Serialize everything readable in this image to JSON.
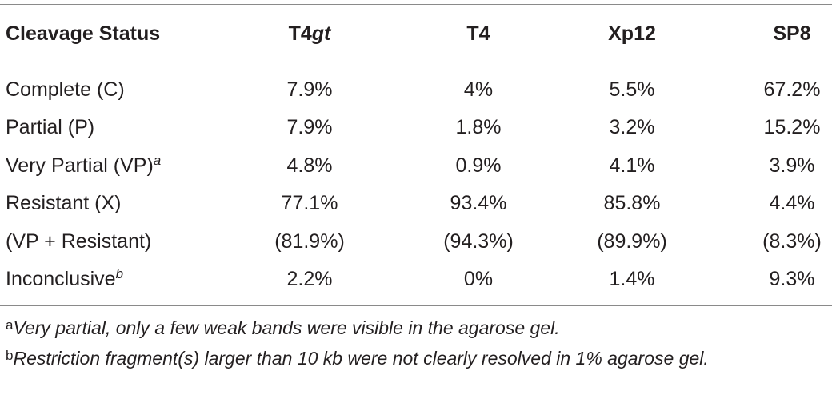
{
  "table": {
    "header": [
      {
        "text": "Cleavage Status"
      },
      {
        "text": "T4",
        "italic": "gt"
      },
      {
        "text": "T4"
      },
      {
        "text": "Xp12"
      },
      {
        "text": "SP8"
      }
    ],
    "rows": [
      {
        "label": {
          "text": "Complete (C)"
        },
        "cells": [
          "7.9%",
          "4%",
          "5.5%",
          "67.2%"
        ]
      },
      {
        "label": {
          "text": "Partial (P)"
        },
        "cells": [
          "7.9%",
          "1.8%",
          "3.2%",
          "15.2%"
        ]
      },
      {
        "label": {
          "text": "Very Partial (VP)",
          "sup": "a"
        },
        "cells": [
          "4.8%",
          "0.9%",
          "4.1%",
          "3.9%"
        ]
      },
      {
        "label": {
          "text": "Resistant (X)"
        },
        "cells": [
          "77.1%",
          "93.4%",
          "85.8%",
          "4.4%"
        ]
      },
      {
        "label": {
          "text": "(VP + Resistant)"
        },
        "cells": [
          "(81.9%)",
          "(94.3%)",
          "(89.9%)",
          "(8.3%)"
        ]
      },
      {
        "label": {
          "text": "Inconclusive",
          "sup": "b"
        },
        "cells": [
          "2.2%",
          "0%",
          "1.4%",
          "9.3%"
        ]
      }
    ],
    "footnotes": [
      {
        "mark": "a",
        "text": "Very partial, only a few weak bands were visible in the agarose gel."
      },
      {
        "mark": "b",
        "text": "Restriction fragment(s) larger than 10 kb were not clearly resolved in 1% agarose gel."
      }
    ]
  }
}
